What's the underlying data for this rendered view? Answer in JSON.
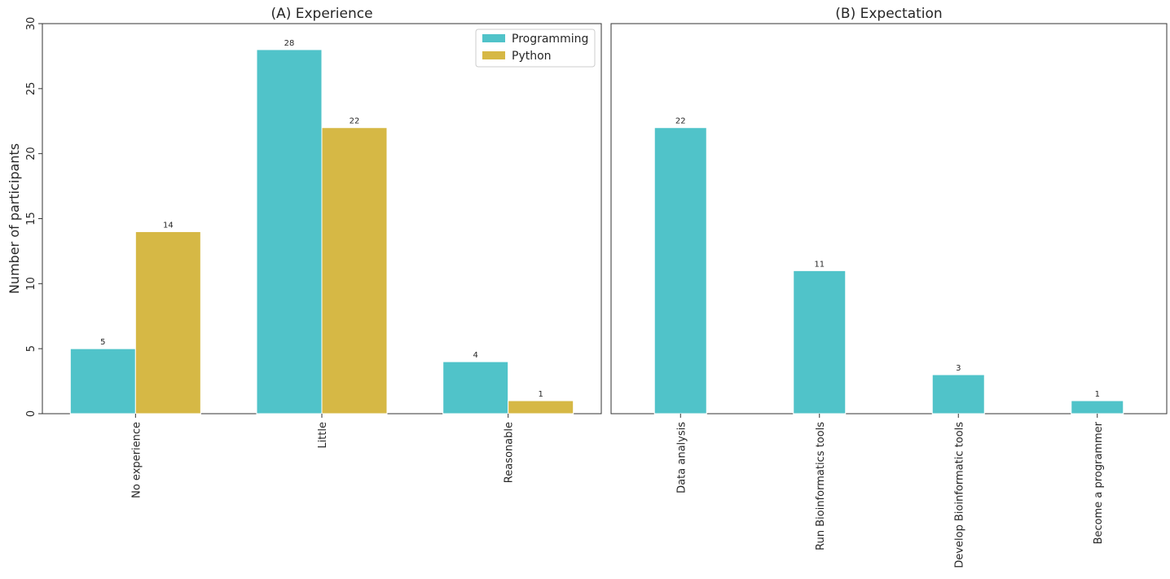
{
  "chart_data": [
    {
      "type": "bar",
      "title": "(A) Experience",
      "xlabel": "",
      "ylabel": "Number of participants",
      "ylim": [
        0,
        30
      ],
      "yticks": [
        0,
        5,
        10,
        15,
        20,
        25,
        30
      ],
      "categories": [
        "No experience",
        "Little",
        "Reasonable"
      ],
      "series": [
        {
          "name": "Programming",
          "color": "#50c3c9",
          "values": [
            5,
            28,
            4
          ]
        },
        {
          "name": "Python",
          "color": "#d6b845",
          "values": [
            14,
            22,
            1
          ]
        }
      ],
      "legend": "top-right",
      "grid": false
    },
    {
      "type": "bar",
      "title": "(B) Expectation",
      "xlabel": "",
      "ylabel": "",
      "ylim": [
        0,
        30
      ],
      "categories": [
        "Data analysis",
        "Run Bioinformatics tools",
        "Develop Bioinformatic tools",
        "Become a programmer"
      ],
      "series": [
        {
          "color": "#50c3c9",
          "values": [
            22,
            11,
            3,
            1
          ]
        }
      ],
      "grid": false
    }
  ]
}
